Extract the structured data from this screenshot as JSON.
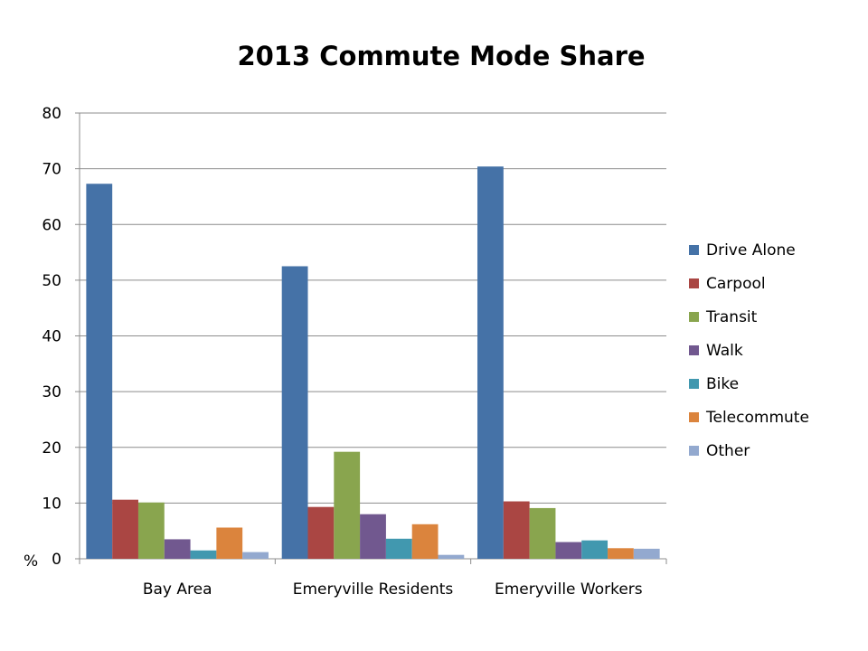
{
  "chart_data": {
    "type": "bar",
    "title": "2013 Commute Mode Share",
    "xlabel": "",
    "ylabel": "%",
    "ylim": [
      0,
      80
    ],
    "yticks": [
      0,
      10,
      20,
      30,
      40,
      50,
      60,
      70,
      80
    ],
    "grid": true,
    "legend_position": "right",
    "categories": [
      "Bay Area",
      "Emeryville Residents",
      "Emeryville Workers"
    ],
    "series": [
      {
        "name": "Drive Alone",
        "color": "#4572A7",
        "values": [
          67.3,
          52.5,
          70.4
        ]
      },
      {
        "name": "Carpool",
        "color": "#AA4643",
        "values": [
          10.6,
          9.3,
          10.3
        ]
      },
      {
        "name": "Transit",
        "color": "#89A54E",
        "values": [
          10.1,
          19.2,
          9.1
        ]
      },
      {
        "name": "Walk",
        "color": "#71588F",
        "values": [
          3.5,
          8.0,
          3.0
        ]
      },
      {
        "name": "Bike",
        "color": "#4198AF",
        "values": [
          1.5,
          3.6,
          3.3
        ]
      },
      {
        "name": "Telecommute",
        "color": "#DB843D",
        "values": [
          5.6,
          6.2,
          1.9
        ]
      },
      {
        "name": "Other",
        "color": "#93A9CF",
        "values": [
          1.2,
          0.7,
          1.8
        ]
      }
    ]
  }
}
